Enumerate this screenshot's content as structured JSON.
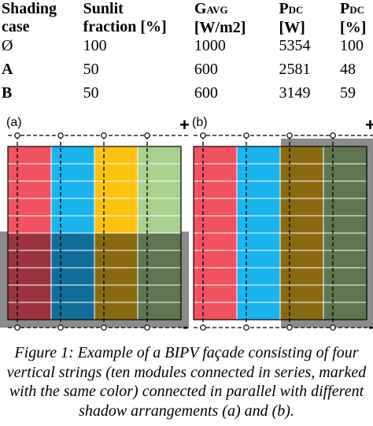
{
  "table": {
    "headers": [
      {
        "line1": "Shading",
        "line2": "case"
      },
      {
        "line1": "Sunlit",
        "line2": "fraction [%]"
      },
      {
        "line1": "G",
        "sub": "AVG",
        "line2": "[W/m2]"
      },
      {
        "line1": "P",
        "sub": "DC",
        "line2": "[W]"
      },
      {
        "line1": "P",
        "sub": "DC",
        "line2": "[%]"
      }
    ],
    "rows": [
      [
        "Ø",
        "100",
        "1000",
        "5354",
        "100"
      ],
      [
        "A",
        "50",
        "600",
        "2581",
        "48"
      ],
      [
        "B",
        "50",
        "600",
        "3149",
        "59"
      ]
    ]
  },
  "diagram": {
    "panels": [
      {
        "label": "(a)",
        "plus": "+",
        "minus": "-",
        "shading": "bottom-half"
      },
      {
        "label": "(b)",
        "plus": "+",
        "minus": "-",
        "shading": "right-half"
      }
    ],
    "strings": 4,
    "modules_per_string": 10,
    "colors": {
      "string1": "#f25260",
      "string2": "#1ab4ef",
      "string3": "#ffc20e",
      "string4": "#a9d18e",
      "string1_shaded": "#9c3440",
      "string2_shaded": "#0f6f98",
      "string3_shaded": "#8a6a10",
      "string4_shaded": "#5e7550",
      "shadow": "#8c8c8c"
    }
  },
  "caption": "Figure 1: Example of a BIPV façade consisting of four vertical strings (ten modules connected in series, marked with the same color) connected in parallel with different shadow arrangements (a) and (b)."
}
